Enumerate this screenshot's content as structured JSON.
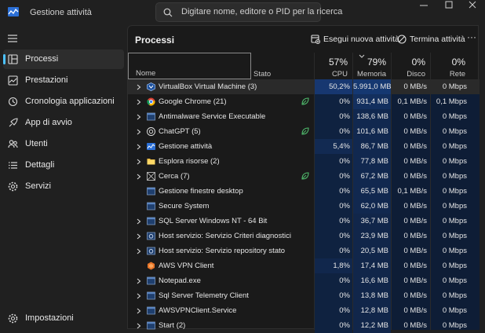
{
  "window": {
    "title": "Gestione attività"
  },
  "search": {
    "placeholder": "Digitare nome, editore o PID per la ricerca"
  },
  "sidebar": {
    "items": [
      {
        "label": "Processi",
        "icon": "processes-icon",
        "active": true
      },
      {
        "label": "Prestazioni",
        "icon": "performance-icon"
      },
      {
        "label": "Cronologia applicazioni",
        "icon": "history-icon"
      },
      {
        "label": "App di avvio",
        "icon": "startup-icon"
      },
      {
        "label": "Utenti",
        "icon": "users-icon"
      },
      {
        "label": "Dettagli",
        "icon": "details-icon"
      },
      {
        "label": "Servizi",
        "icon": "services-icon"
      }
    ],
    "settings": {
      "label": "Impostazioni",
      "icon": "gear-icon"
    }
  },
  "main": {
    "title": "Processi",
    "run_task_label": "Esegui nuova attività",
    "end_task_label": "Termina attività",
    "more_label": "···"
  },
  "columns": {
    "name": "Nome",
    "status": "Stato",
    "cpu": {
      "pct": "57%",
      "label": "CPU"
    },
    "memory": {
      "pct": "79%",
      "label": "Memoria"
    },
    "disk": {
      "pct": "0%",
      "label": "Disco"
    },
    "network": {
      "pct": "0%",
      "label": "Rete"
    }
  },
  "processes": [
    {
      "name": "VirtualBox Virtual Machine (3)",
      "icon": "virtualbox-icon",
      "expandable": true,
      "leaf": false,
      "cpu": "50,2%",
      "mem": "5.991,0 MB",
      "disk": "0 MB/s",
      "net": "0 Mbps",
      "cpu_level": 0.9,
      "mem_level": 0.9,
      "highlight": true
    },
    {
      "name": "Google Chrome (21)",
      "icon": "chrome-icon",
      "expandable": true,
      "leaf": true,
      "cpu": "0%",
      "mem": "931,4 MB",
      "disk": "0,1 MB/s",
      "net": "0,1 Mbps",
      "cpu_level": 0.1,
      "mem_level": 0.5
    },
    {
      "name": "Antimalware Service Executable",
      "icon": "window-icon",
      "expandable": true,
      "leaf": false,
      "cpu": "0%",
      "mem": "138,6 MB",
      "disk": "0 MB/s",
      "net": "0 Mbps",
      "cpu_level": 0.1,
      "mem_level": 0.2
    },
    {
      "name": "ChatGPT (5)",
      "icon": "chatgpt-icon",
      "expandable": true,
      "leaf": true,
      "cpu": "0%",
      "mem": "101,6 MB",
      "disk": "0 MB/s",
      "net": "0 Mbps",
      "cpu_level": 0.1,
      "mem_level": 0.2
    },
    {
      "name": "Gestione attività",
      "icon": "task-manager-icon",
      "expandable": true,
      "leaf": false,
      "cpu": "5,4%",
      "mem": "86,7 MB",
      "disk": "0 MB/s",
      "net": "0 Mbps",
      "cpu_level": 0.4,
      "mem_level": 0.2
    },
    {
      "name": "Esplora risorse (2)",
      "icon": "folder-icon",
      "expandable": true,
      "leaf": false,
      "cpu": "0%",
      "mem": "77,8 MB",
      "disk": "0 MB/s",
      "net": "0 Mbps",
      "cpu_level": 0.1,
      "mem_level": 0.2
    },
    {
      "name": "Cerca (7)",
      "icon": "search-app-icon",
      "expandable": true,
      "leaf": true,
      "cpu": "0%",
      "mem": "67,2 MB",
      "disk": "0 MB/s",
      "net": "0 Mbps",
      "cpu_level": 0.1,
      "mem_level": 0.2
    },
    {
      "name": "Gestione finestre desktop",
      "icon": "window-icon",
      "expandable": false,
      "leaf": false,
      "cpu": "0%",
      "mem": "65,5 MB",
      "disk": "0,1 MB/s",
      "net": "0 Mbps",
      "cpu_level": 0.1,
      "mem_level": 0.2
    },
    {
      "name": "Secure System",
      "icon": "window-icon",
      "expandable": false,
      "leaf": false,
      "cpu": "0%",
      "mem": "62,0 MB",
      "disk": "0 MB/s",
      "net": "0 Mbps",
      "cpu_level": 0.1,
      "mem_level": 0.2
    },
    {
      "name": "SQL Server Windows NT - 64 Bit",
      "icon": "window-icon",
      "expandable": true,
      "leaf": false,
      "cpu": "0%",
      "mem": "36,7 MB",
      "disk": "0 MB/s",
      "net": "0 Mbps",
      "cpu_level": 0.1,
      "mem_level": 0.1
    },
    {
      "name": "Host servizio: Servizio Criteri diagnostici",
      "icon": "service-host-icon",
      "expandable": true,
      "leaf": false,
      "cpu": "0%",
      "mem": "23,9 MB",
      "disk": "0 MB/s",
      "net": "0 Mbps",
      "cpu_level": 0.1,
      "mem_level": 0.1
    },
    {
      "name": "Host servizio: Servizio repository stato",
      "icon": "service-host-icon",
      "expandable": true,
      "leaf": false,
      "cpu": "0%",
      "mem": "20,5 MB",
      "disk": "0 MB/s",
      "net": "0 Mbps",
      "cpu_level": 0.1,
      "mem_level": 0.1
    },
    {
      "name": "AWS VPN Client",
      "icon": "aws-vpn-icon",
      "expandable": false,
      "leaf": false,
      "cpu": "1,8%",
      "mem": "17,4 MB",
      "disk": "0 MB/s",
      "net": "0 Mbps",
      "cpu_level": 0.3,
      "mem_level": 0.1
    },
    {
      "name": "Notepad.exe",
      "icon": "window-icon",
      "expandable": true,
      "leaf": false,
      "cpu": "0%",
      "mem": "16,6 MB",
      "disk": "0 MB/s",
      "net": "0 Mbps",
      "cpu_level": 0.1,
      "mem_level": 0.1
    },
    {
      "name": "Sql Server Telemetry Client",
      "icon": "window-icon",
      "expandable": true,
      "leaf": false,
      "cpu": "0%",
      "mem": "13,8 MB",
      "disk": "0 MB/s",
      "net": "0 Mbps",
      "cpu_level": 0.1,
      "mem_level": 0.1
    },
    {
      "name": "AWSVPNClient.Service",
      "icon": "window-icon",
      "expandable": true,
      "leaf": false,
      "cpu": "0%",
      "mem": "12,8 MB",
      "disk": "0 MB/s",
      "net": "0 Mbps",
      "cpu_level": 0.1,
      "mem_level": 0.1
    },
    {
      "name": "Start (2)",
      "icon": "window-icon",
      "expandable": true,
      "leaf": false,
      "cpu": "0%",
      "mem": "12,2 MB",
      "disk": "0 MB/s",
      "net": "0 Mbps",
      "cpu_level": 0.1,
      "mem_level": 0.1
    }
  ]
}
